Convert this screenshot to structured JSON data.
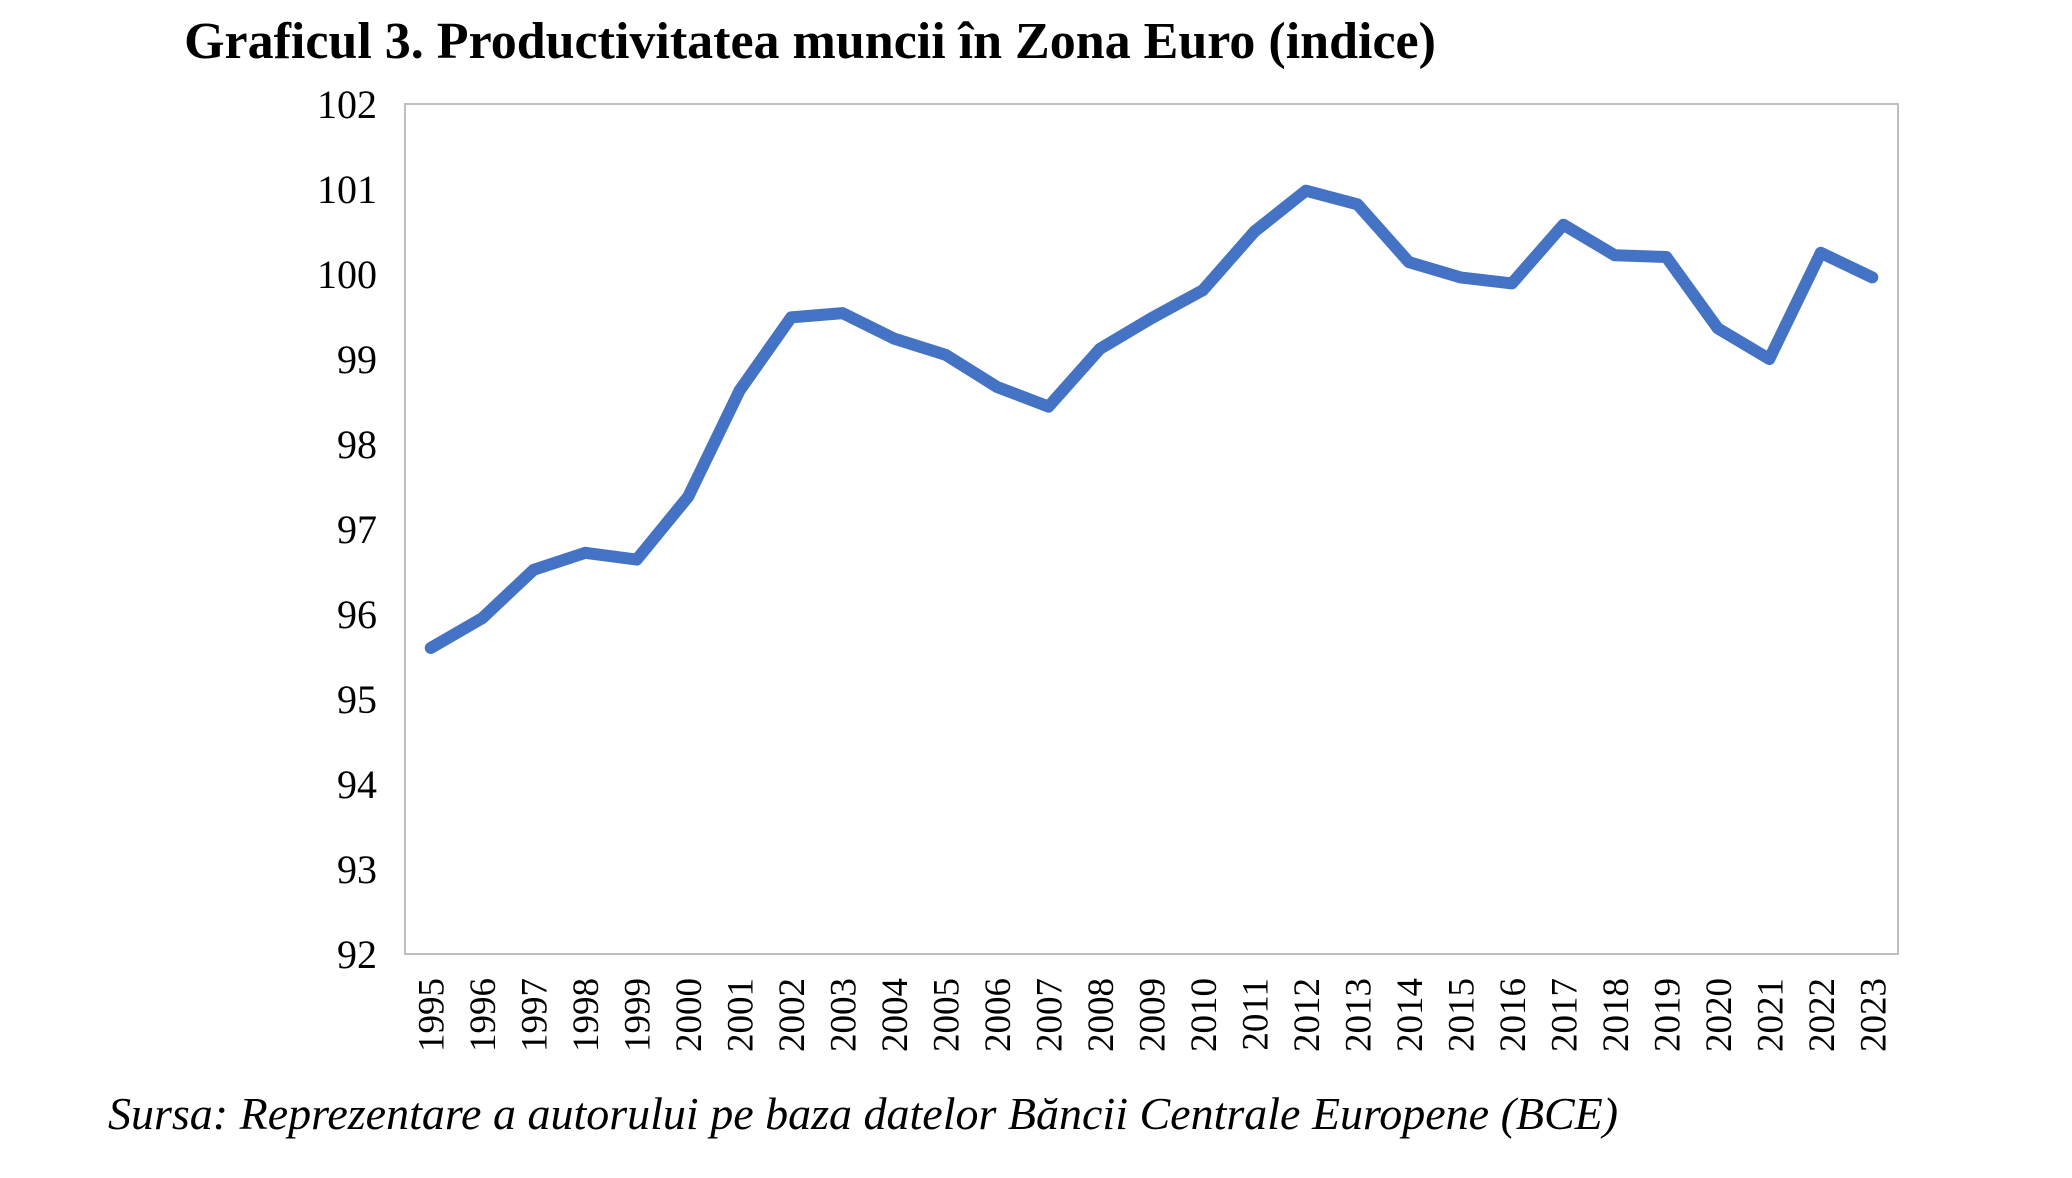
{
  "chart_data": {
    "type": "line",
    "title": "Graficul 3. Productivitatea muncii în Zona Euro (indice)",
    "xlabel": "",
    "ylabel": "",
    "x": [
      "1995",
      "1996",
      "1997",
      "1998",
      "1999",
      "2000",
      "2001",
      "2002",
      "2003",
      "2004",
      "2005",
      "2006",
      "2007",
      "2008",
      "2009",
      "2010",
      "2011",
      "2012",
      "2013",
      "2014",
      "2015",
      "2016",
      "2017",
      "2018",
      "2019",
      "2020",
      "2021",
      "2022",
      "2023"
    ],
    "series": [
      {
        "values": [
          95.6,
          95.95,
          96.52,
          96.72,
          96.64,
          97.38,
          98.63,
          99.49,
          99.54,
          99.24,
          99.05,
          98.67,
          98.44,
          99.12,
          99.48,
          99.81,
          100.5,
          100.98,
          100.82,
          100.14,
          99.96,
          99.89,
          100.58,
          100.22,
          100.2,
          99.36,
          99.0,
          100.25,
          99.96
        ],
        "color": "#4472c4"
      }
    ],
    "ylim": [
      92,
      102
    ],
    "yticks": [
      "92",
      "93",
      "94",
      "95",
      "96",
      "97",
      "98",
      "99",
      "100",
      "101",
      "102"
    ],
    "grid": false,
    "legend": "none"
  },
  "source_note": "Sursa: Reprezentare a autorului pe baza datelor Băncii Centrale Europene (BCE)",
  "colors": {
    "line": "#4472c4",
    "frame": "#bfbfbf"
  }
}
